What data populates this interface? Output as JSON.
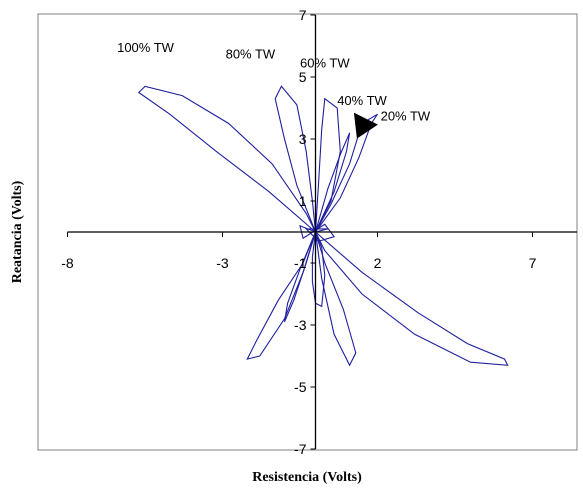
{
  "chart_data": {
    "type": "scatter",
    "xlabel": "Resistencia (Volts)",
    "ylabel": "Reatancia (Volts)",
    "xlim": [
      -8,
      8
    ],
    "ylim": [
      -7,
      7
    ],
    "x_ticks": [
      -8,
      -3,
      2,
      7
    ],
    "y_ticks": [
      7,
      5,
      3,
      1,
      -1,
      -3,
      -5,
      -7
    ],
    "grid": false,
    "line_color": "#1f1fa0",
    "annotations": [
      {
        "text": "100% TW",
        "x": -6.4,
        "y": 5.8
      },
      {
        "text": "80% TW",
        "x": -2.9,
        "y": 5.6
      },
      {
        "text": "60% TW",
        "x": -0.5,
        "y": 5.3
      },
      {
        "text": "40% TW",
        "x": 0.7,
        "y": 4.1
      },
      {
        "text": "20% TW",
        "x": 2.1,
        "y": 3.6
      }
    ],
    "arrow_marker": {
      "x": 1.4,
      "y": 3.4
    },
    "series": [
      {
        "loop": "100%",
        "points": [
          [
            0,
            0
          ],
          [
            -1.5,
            1.3
          ],
          [
            -3.2,
            2.6
          ],
          [
            -4.7,
            3.8
          ],
          [
            -5.7,
            4.5
          ],
          [
            -5.5,
            4.7
          ],
          [
            -4.3,
            4.4
          ],
          [
            -2.8,
            3.5
          ],
          [
            -1.4,
            2.2
          ],
          [
            -0.3,
            0.6
          ],
          [
            0,
            0
          ],
          [
            1.5,
            -1.3
          ],
          [
            3.3,
            -2.6
          ],
          [
            4.9,
            -3.6
          ],
          [
            6.1,
            -4.1
          ],
          [
            6.2,
            -4.3
          ],
          [
            5.0,
            -4.2
          ],
          [
            3.2,
            -3.3
          ],
          [
            1.5,
            -2.0
          ],
          [
            0.3,
            -0.6
          ],
          [
            0,
            0
          ]
        ]
      },
      {
        "loop": "80%",
        "points": [
          [
            0,
            0
          ],
          [
            -0.6,
            1.5
          ],
          [
            -1.0,
            3.0
          ],
          [
            -1.3,
            4.3
          ],
          [
            -1.1,
            4.7
          ],
          [
            -0.6,
            4.1
          ],
          [
            -0.3,
            2.6
          ],
          [
            -0.1,
            1.0
          ],
          [
            0,
            0
          ],
          [
            -0.4,
            -1.0
          ],
          [
            -1.2,
            -2.2
          ],
          [
            -1.9,
            -3.5
          ],
          [
            -2.2,
            -4.1
          ],
          [
            -1.8,
            -4.0
          ],
          [
            -1.0,
            -2.8
          ],
          [
            -0.4,
            -1.3
          ],
          [
            0,
            0
          ]
        ]
      },
      {
        "loop": "60%",
        "points": [
          [
            0,
            0
          ],
          [
            0.1,
            1.6
          ],
          [
            0.2,
            3.3
          ],
          [
            0.3,
            4.3
          ],
          [
            0.7,
            4.0
          ],
          [
            0.8,
            2.6
          ],
          [
            0.5,
            1.0
          ],
          [
            0,
            0
          ],
          [
            0.3,
            -1.0
          ],
          [
            0.9,
            -2.5
          ],
          [
            1.3,
            -3.9
          ],
          [
            1.1,
            -4.3
          ],
          [
            0.6,
            -3.3
          ],
          [
            0.2,
            -1.5
          ],
          [
            0,
            0
          ]
        ]
      },
      {
        "loop": "40%",
        "points": [
          [
            0,
            0
          ],
          [
            0.4,
            1.4
          ],
          [
            0.8,
            2.5
          ],
          [
            1.1,
            3.2
          ],
          [
            1.0,
            2.6
          ],
          [
            0.6,
            1.3
          ],
          [
            0,
            0
          ],
          [
            -0.5,
            -1.2
          ],
          [
            -0.9,
            -2.3
          ],
          [
            -1.0,
            -2.9
          ],
          [
            -0.7,
            -2.2
          ],
          [
            -0.3,
            -1.0
          ],
          [
            0,
            0
          ]
        ]
      },
      {
        "loop": "20%",
        "points": [
          [
            0,
            0
          ],
          [
            0.8,
            1.1
          ],
          [
            1.4,
            2.4
          ],
          [
            1.8,
            3.5
          ],
          [
            2.0,
            3.8
          ],
          [
            1.5,
            3.5
          ],
          [
            1.1,
            2.2
          ],
          [
            0.5,
            0.9
          ],
          [
            0,
            0
          ],
          [
            -0.1,
            -0.8
          ],
          [
            -0.1,
            -1.6
          ],
          [
            0.0,
            -2.3
          ],
          [
            0.2,
            -2.4
          ],
          [
            0.3,
            -1.4
          ],
          [
            0.2,
            -0.5
          ],
          [
            0,
            0
          ]
        ]
      },
      {
        "loop": "centre-knot",
        "points": [
          [
            0,
            0
          ],
          [
            -0.5,
            0.2
          ],
          [
            -0.4,
            -0.2
          ],
          [
            0.3,
            0.25
          ],
          [
            0.6,
            -0.15
          ],
          [
            0.1,
            -0.3
          ],
          [
            -0.3,
            0.1
          ],
          [
            0.4,
            0.1
          ],
          [
            0,
            0
          ]
        ]
      }
    ]
  }
}
